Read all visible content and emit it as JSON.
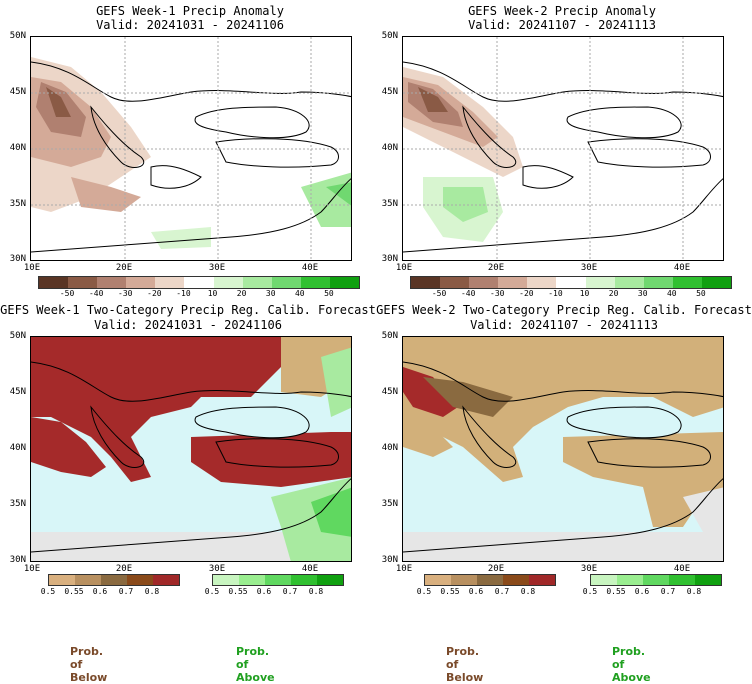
{
  "panels": {
    "p1": {
      "title": "GEFS Week-1 Precip Anomaly",
      "valid": "Valid: 20241031 - 20241106"
    },
    "p2": {
      "title": "GEFS Week-2 Precip Anomaly",
      "valid": "Valid: 20241107 - 20241113"
    },
    "p3": {
      "title": "GEFS Week-1 Two-Category Precip Reg. Calib. Forecast",
      "valid": "Valid: 20241031 - 20241106"
    },
    "p4": {
      "title": "GEFS Week-2 Two-Category Precip Reg. Calib. Forecast",
      "valid": "Valid: 20241107 - 20241113"
    }
  },
  "axes": {
    "lat": [
      "50N",
      "45N",
      "40N",
      "35N",
      "30N"
    ],
    "lon": [
      "10E",
      "20E",
      "30E",
      "40E"
    ]
  },
  "anomaly_scale": {
    "labels": [
      "-50",
      "-40",
      "-30",
      "-20",
      "-10",
      "10",
      "20",
      "30",
      "40",
      "50"
    ],
    "colors": [
      "#5a3525",
      "#8a5a45",
      "#b08070",
      "#d4aa98",
      "#ecd6c8",
      "#ffffff",
      "#d8f5d0",
      "#a8eaa0",
      "#70d870",
      "#30c030",
      "#10a010"
    ]
  },
  "prob_below_scale": {
    "labels": [
      "0.5",
      "0.55",
      "0.6",
      "0.7",
      "0.8"
    ],
    "colors": [
      "#d9b07f",
      "#b89060",
      "#8a6a40",
      "#8a4a1a",
      "#a02828"
    ]
  },
  "prob_above_scale": {
    "labels": [
      "0.5",
      "0.55",
      "0.6",
      "0.7",
      "0.8"
    ],
    "colors": [
      "#c8f5c0",
      "#9aee90",
      "#60d860",
      "#30c030",
      "#10a010"
    ]
  },
  "footer": {
    "below_left": "Prob. of Below",
    "above_left": "Prob. of Above",
    "below_right": "Prob. of Below",
    "above_right": "Prob. of Above"
  },
  "colors": {
    "below_text": "#7a4a2a",
    "above_text": "#20a020",
    "sea": "#d8f6f8",
    "strong_below": "#a52a2a",
    "tan": "#d2b07a"
  }
}
